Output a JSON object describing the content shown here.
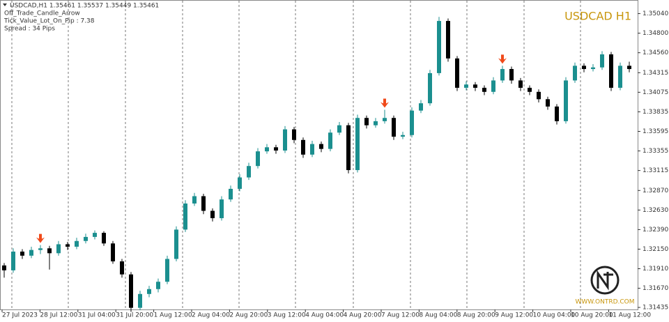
{
  "chart_data": {
    "type": "candlestick",
    "title": "USDCAD H1",
    "info": [
      "USDCAD,H1  1.35461 1.35537 1.35449 1.35461",
      "Off_Trade_Candle_Arrow",
      "Tick_Value_Lot_On_Pip : 7.38",
      "Spread : 34  Pips"
    ],
    "watermark": "WWW.ONTRD.COM",
    "up_color": "#1b8f8f",
    "down_color": "#000000",
    "signal_color": "#f04a1a",
    "title_color": "#c8960c",
    "ylim": [
      1.3141,
      1.3519
    ],
    "yticks": [
      {
        "value": 1.3504,
        "label": "1.35040"
      },
      {
        "value": 1.348,
        "label": "1.34800"
      },
      {
        "value": 1.3456,
        "label": "1.34560"
      },
      1.34315,
      1.34075,
      1.33835,
      1.33595,
      1.33355,
      1.33115,
      {
        "value": 1.3287,
        "label": "1.32870"
      },
      {
        "value": 1.3263,
        "label": "1.32630"
      },
      {
        "value": 1.3239,
        "label": "1.32390"
      },
      {
        "value": 1.3215,
        "label": "1.32150"
      },
      {
        "value": 1.3191,
        "label": "1.31910"
      },
      {
        "value": 1.3167,
        "label": "1.31670"
      },
      1.31435
    ],
    "xlabels": [
      "27 Jul 2023",
      "28 Jul 12:00",
      "31 Jul 04:00",
      "31 Jul 20:00",
      "1 Aug 12:00",
      "2 Aug 04:00",
      "2 Aug 20:00",
      "3 Aug 12:00",
      "4 Aug 04:00",
      "4 Aug 20:00",
      "7 Aug 12:00",
      "8 Aug 04:00",
      "8 Aug 20:00",
      "9 Aug 12:00",
      "10 Aug 04:00",
      "10 Aug 20:00",
      "11 Aug 12:00"
    ],
    "signals": [
      4,
      42,
      55
    ],
    "candles": [
      [
        1.3195,
        1.3198,
        1.318,
        1.3189
      ],
      [
        1.3189,
        1.3216,
        1.3186,
        1.3212
      ],
      [
        1.3212,
        1.3215,
        1.3203,
        1.3207
      ],
      [
        1.3207,
        1.3218,
        1.3204,
        1.3214
      ],
      [
        1.3214,
        1.322,
        1.3209,
        1.3216
      ],
      [
        1.3216,
        1.3219,
        1.319,
        1.321
      ],
      [
        1.321,
        1.3225,
        1.3207,
        1.3221
      ],
      [
        1.3221,
        1.3224,
        1.3214,
        1.3218
      ],
      [
        1.3218,
        1.3229,
        1.3215,
        1.3225
      ],
      [
        1.3225,
        1.3234,
        1.3222,
        1.323
      ],
      [
        1.323,
        1.3238,
        1.3227,
        1.3235
      ],
      [
        1.3235,
        1.3237,
        1.3219,
        1.3222
      ],
      [
        1.3222,
        1.3225,
        1.3197,
        1.32
      ],
      [
        1.32,
        1.3203,
        1.318,
        1.3184
      ],
      [
        1.3184,
        1.3187,
        1.3138,
        1.3143
      ],
      [
        1.3143,
        1.3164,
        1.314,
        1.316
      ],
      [
        1.316,
        1.317,
        1.3156,
        1.3166
      ],
      [
        1.3166,
        1.3179,
        1.3162,
        1.3175
      ],
      [
        1.3175,
        1.3207,
        1.3172,
        1.3203
      ],
      [
        1.3203,
        1.3243,
        1.32,
        1.3239
      ],
      [
        1.3239,
        1.3275,
        1.3236,
        1.3271
      ],
      [
        1.3271,
        1.3284,
        1.3268,
        1.328
      ],
      [
        1.328,
        1.3283,
        1.3258,
        1.3262
      ],
      [
        1.3262,
        1.3265,
        1.3249,
        1.3253
      ],
      [
        1.3253,
        1.328,
        1.325,
        1.3276
      ],
      [
        1.3276,
        1.3293,
        1.3273,
        1.3289
      ],
      [
        1.3289,
        1.3307,
        1.3286,
        1.3303
      ],
      [
        1.3303,
        1.3321,
        1.33,
        1.3317
      ],
      [
        1.3317,
        1.3339,
        1.3314,
        1.3335
      ],
      [
        1.3335,
        1.3344,
        1.3332,
        1.334
      ],
      [
        1.334,
        1.3343,
        1.3332,
        1.3336
      ],
      [
        1.3336,
        1.3366,
        1.3333,
        1.3362
      ],
      [
        1.3362,
        1.3365,
        1.3345,
        1.3349
      ],
      [
        1.3349,
        1.3352,
        1.3327,
        1.3331
      ],
      [
        1.3331,
        1.3348,
        1.3328,
        1.3344
      ],
      [
        1.3344,
        1.3347,
        1.3334,
        1.3338
      ],
      [
        1.3338,
        1.3362,
        1.3335,
        1.3358
      ],
      [
        1.3358,
        1.3371,
        1.3355,
        1.3367
      ],
      [
        1.3367,
        1.337,
        1.3308,
        1.3312
      ],
      [
        1.3312,
        1.338,
        1.3309,
        1.3376
      ],
      [
        1.3376,
        1.3379,
        1.3363,
        1.3367
      ],
      [
        1.3367,
        1.3376,
        1.3364,
        1.3372
      ],
      [
        1.3372,
        1.3386,
        1.3369,
        1.3376
      ],
      [
        1.3376,
        1.3379,
        1.3349,
        1.3353
      ],
      [
        1.3353,
        1.3359,
        1.335,
        1.3355
      ],
      [
        1.3355,
        1.3389,
        1.3352,
        1.3385
      ],
      [
        1.3385,
        1.3398,
        1.3382,
        1.3394
      ],
      [
        1.3394,
        1.3435,
        1.3391,
        1.3431
      ],
      [
        1.3431,
        1.35,
        1.3428,
        1.3495
      ],
      [
        1.3495,
        1.3498,
        1.3445,
        1.3449
      ],
      [
        1.3449,
        1.3452,
        1.3409,
        1.3413
      ],
      [
        1.3413,
        1.3421,
        1.341,
        1.3417
      ],
      [
        1.3417,
        1.342,
        1.3409,
        1.3413
      ],
      [
        1.3413,
        1.3416,
        1.3404,
        1.3408
      ],
      [
        1.3408,
        1.3426,
        1.3405,
        1.3422
      ],
      [
        1.3422,
        1.344,
        1.3419,
        1.3436
      ],
      [
        1.3436,
        1.3439,
        1.3418,
        1.3422
      ],
      [
        1.3422,
        1.3425,
        1.3409,
        1.3413
      ],
      [
        1.3413,
        1.3416,
        1.3404,
        1.3408
      ],
      [
        1.3408,
        1.3411,
        1.3395,
        1.3399
      ],
      [
        1.3399,
        1.3402,
        1.3386,
        1.339
      ],
      [
        1.339,
        1.3393,
        1.3368,
        1.3372
      ],
      [
        1.3372,
        1.3426,
        1.3369,
        1.3422
      ],
      [
        1.3422,
        1.3444,
        1.3419,
        1.344
      ],
      [
        1.344,
        1.3443,
        1.3432,
        1.3436
      ],
      [
        1.3436,
        1.3442,
        1.3433,
        1.3438
      ],
      [
        1.3438,
        1.3458,
        1.3435,
        1.3454
      ],
      [
        1.3454,
        1.3457,
        1.3409,
        1.3413
      ],
      [
        1.3413,
        1.3444,
        1.341,
        1.344
      ],
      [
        1.344,
        1.3445,
        1.3432,
        1.3436
      ]
    ]
  }
}
